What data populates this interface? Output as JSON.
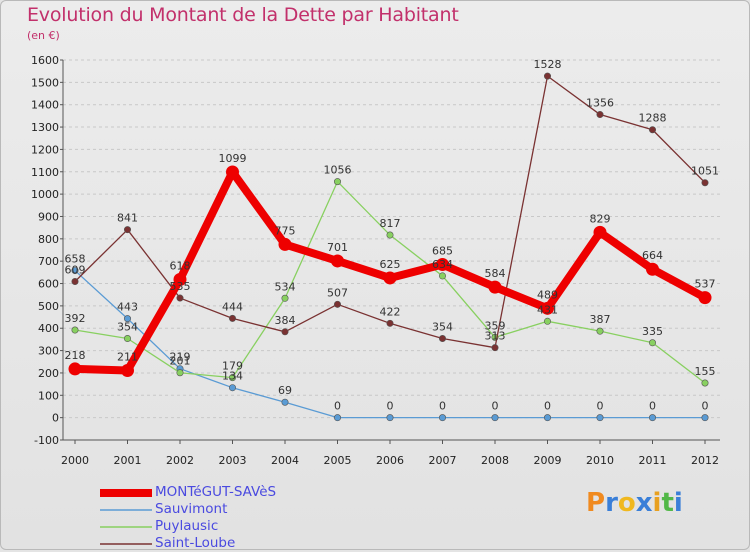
{
  "header": {
    "title": "Evolution du Montant de la Dette par Habitant",
    "unit": "(en €)"
  },
  "logo": {
    "letters": [
      "P",
      "r",
      "o",
      "x",
      "i",
      "t",
      "i"
    ],
    "colors": [
      "#f08a1f",
      "#3a7fd8",
      "#f0b81f",
      "#3a7fd8",
      "#e8a020",
      "#52b848",
      "#3a7fd8"
    ]
  },
  "colors": {
    "title": "#c2306b",
    "legend_text": "#4a4ae0",
    "grid": "#c8c8c8",
    "axis": "#555555"
  },
  "chart_data": {
    "type": "line",
    "title": "Evolution du Montant de la Dette par Habitant",
    "subtitle": "(en €)",
    "x": [
      "2000",
      "2001",
      "2002",
      "2003",
      "2004",
      "2005",
      "2006",
      "2007",
      "2008",
      "2009",
      "2010",
      "2011",
      "2012"
    ],
    "ylim": [
      -100,
      1600
    ],
    "yticks": [
      -100,
      0,
      100,
      200,
      300,
      400,
      500,
      600,
      700,
      800,
      900,
      1000,
      1100,
      1200,
      1300,
      1400,
      1500,
      1600
    ],
    "grid": "horizontal dashed",
    "legend_position": "bottom-left",
    "series": [
      {
        "name": "MONTéGUT-SAVèS",
        "color": "#ee0000",
        "values": [
          218,
          211,
          618,
          1099,
          775,
          701,
          625,
          685,
          584,
          489,
          829,
          664,
          537
        ],
        "labels": [
          "218",
          "211",
          "618",
          "1099",
          "775",
          "701",
          "625",
          "685",
          "584",
          "489",
          "829",
          "664",
          "537"
        ],
        "emphasis": true
      },
      {
        "name": "Sauvimont",
        "color": "#5a9bd4",
        "values": [
          658,
          443,
          219,
          134,
          69,
          0,
          0,
          0,
          0,
          0,
          0,
          0,
          0
        ],
        "labels": [
          "658",
          "443",
          "219",
          "134",
          "69",
          "0",
          "0",
          "0",
          "0",
          "0",
          "0",
          "0",
          "0"
        ]
      },
      {
        "name": "Puylausic",
        "color": "#88d060",
        "values": [
          392,
          354,
          201,
          179,
          534,
          1056,
          817,
          634,
          359,
          431,
          387,
          335,
          155
        ],
        "labels": [
          "392",
          "354",
          "201",
          "179",
          "534",
          "1056",
          "817",
          "634",
          "359",
          "431",
          "387",
          "335",
          "155"
        ]
      },
      {
        "name": "Saint-Loube",
        "color": "#7a3232",
        "values": [
          609,
          841,
          535,
          444,
          384,
          507,
          422,
          354,
          313,
          1528,
          1356,
          1288,
          1051
        ],
        "labels": [
          "609",
          "841",
          "535",
          "444",
          "384",
          "507",
          "422",
          "354",
          "313",
          "1528",
          "1356",
          "1288",
          "1051"
        ]
      }
    ]
  }
}
